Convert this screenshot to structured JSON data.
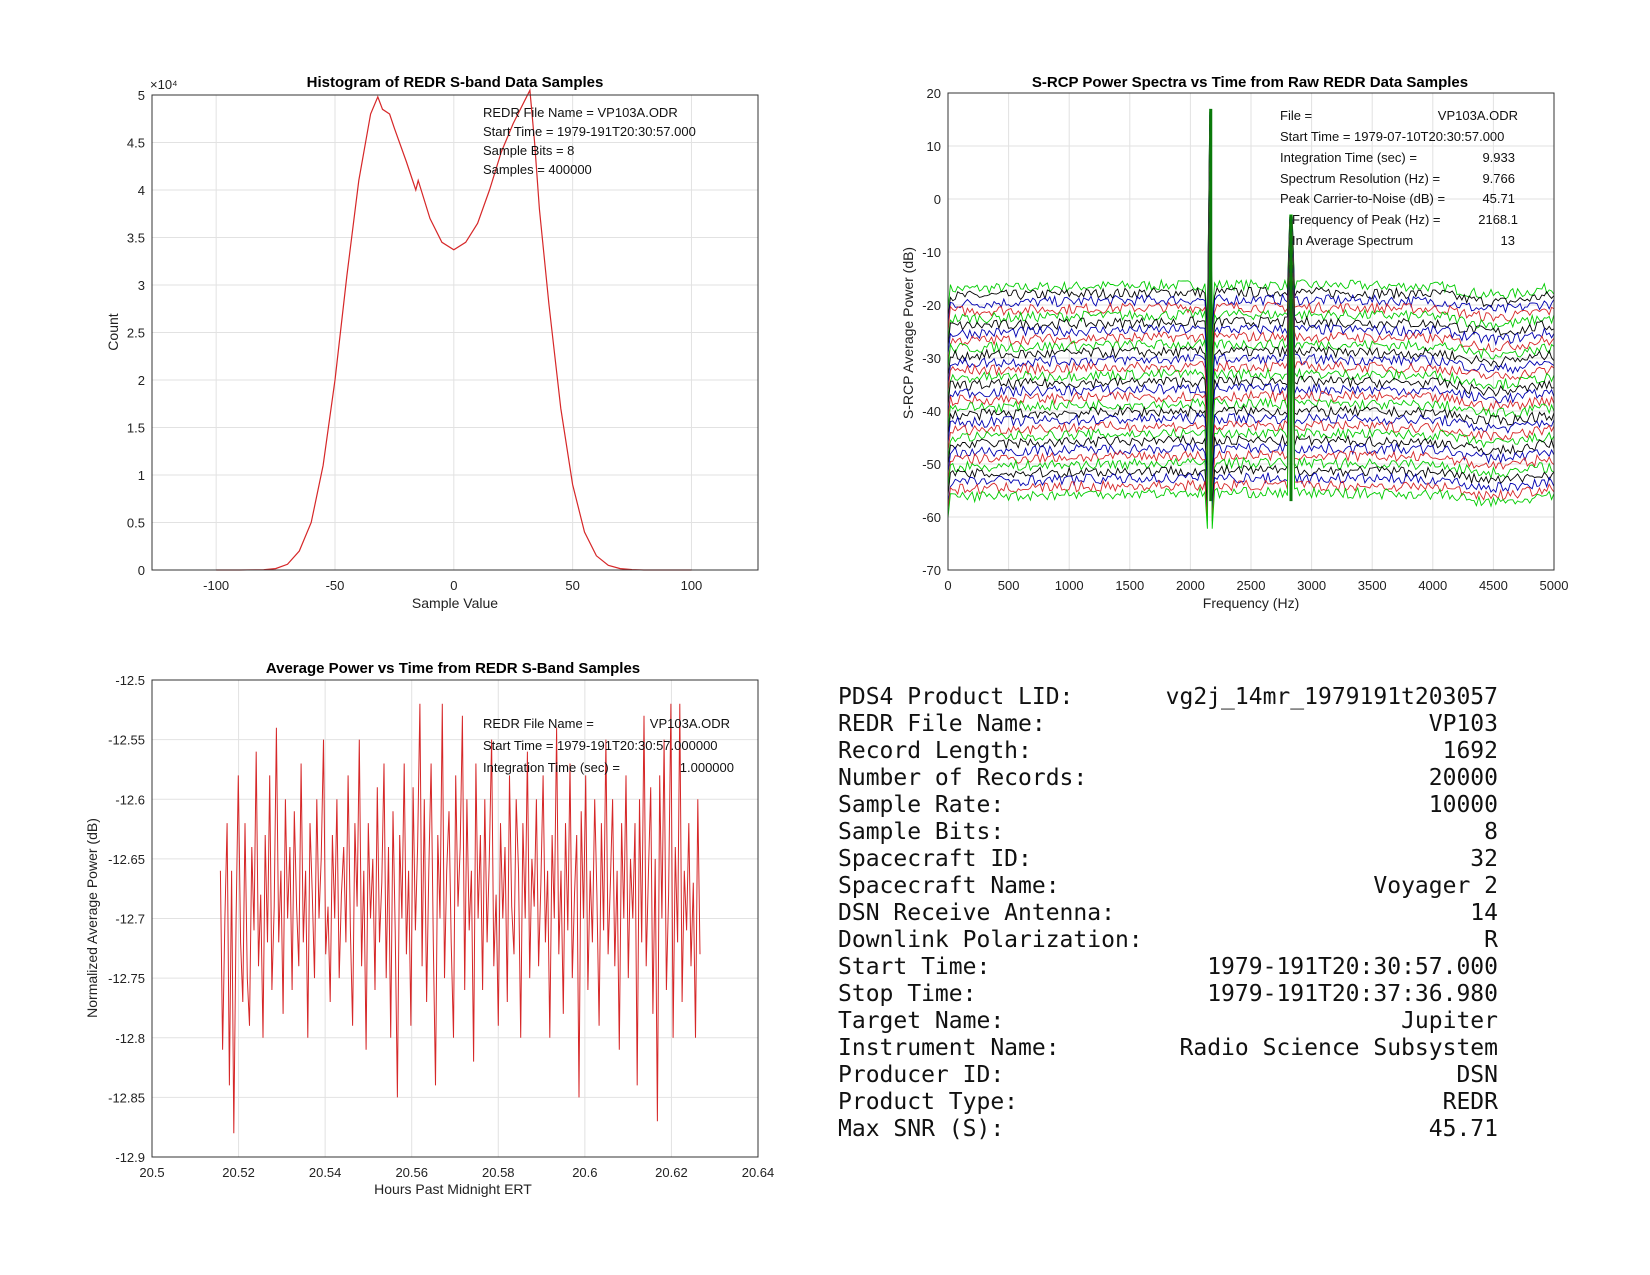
{
  "chart_data": [
    {
      "type": "line",
      "title": "Histogram of REDR S-band Data Samples",
      "xlabel": "Sample Value",
      "ylabel": "Count",
      "y_exponent": "×10⁴",
      "xlim": [
        -127,
        128
      ],
      "ylim": [
        0,
        50000
      ],
      "x_ticks": [
        "-100",
        "-50",
        "0",
        "50",
        "100"
      ],
      "y_ticks": [
        "0",
        "0.5",
        "1",
        "1.5",
        "2",
        "2.5",
        "3",
        "3.5",
        "4",
        "4.5",
        "5"
      ],
      "grid": true,
      "line_color": "#d62728",
      "annotations": [
        "REDR File Name = VP103A.ODR",
        "Start Time = 1979-191T20:30:57.000",
        "Sample Bits = 8",
        "Samples = 400000"
      ],
      "x": [
        -100,
        -90,
        -80,
        -75,
        -70,
        -65,
        -60,
        -55,
        -50,
        -45,
        -40,
        -35,
        -32,
        -30,
        -27,
        -25,
        -20,
        -16,
        -15,
        -10,
        -5,
        0,
        5,
        10,
        15,
        20,
        25,
        30,
        32,
        34,
        36,
        40,
        45,
        50,
        55,
        60,
        65,
        70,
        75,
        80,
        90,
        100
      ],
      "values": [
        0,
        0,
        30,
        150,
        600,
        2000,
        5000,
        11000,
        20000,
        31000,
        41000,
        48000,
        49800,
        48500,
        48000,
        46500,
        43000,
        40000,
        41000,
        37000,
        34500,
        33700,
        34500,
        36500,
        40000,
        44000,
        47000,
        49500,
        50500,
        45000,
        38000,
        28000,
        17000,
        9000,
        4000,
        1500,
        500,
        150,
        40,
        5,
        0,
        0
      ]
    },
    {
      "type": "line",
      "title": "S-RCP Power Spectra vs Time from Raw REDR Data Samples",
      "xlabel": "Frequency (Hz)",
      "ylabel": "S-RCP Average Power (dB)",
      "xlim": [
        0,
        5000
      ],
      "ylim": [
        -70,
        20
      ],
      "x_ticks": [
        "0",
        "500",
        "1000",
        "1500",
        "2000",
        "2500",
        "3000",
        "3500",
        "4000",
        "4500",
        "5000"
      ],
      "y_ticks": [
        "20",
        "10",
        "0",
        "-10",
        "-20",
        "-30",
        "-40",
        "-50",
        "-60",
        "-70"
      ],
      "grid": true,
      "n_spectra": 29,
      "top_level_db": -17,
      "step_db": -1.4,
      "colors": [
        "#00cc00",
        "#000000",
        "#0000b0",
        "#d62728"
      ],
      "peaks": [
        {
          "freq": 2168,
          "top_db": 17
        },
        {
          "freq": 2830,
          "top_db": -3
        }
      ],
      "annotations": [
        {
          "label": "File =",
          "value": "VP103A.ODR"
        },
        {
          "label": "Start Time = 1979-07-10T20:30:57.000",
          "value": ""
        },
        {
          "label": "Integration Time (sec) =",
          "value": "9.933"
        },
        {
          "label": "Spectrum Resolution (Hz) =",
          "value": "9.766"
        },
        {
          "label": "Peak Carrier-to-Noise (dB) =",
          "value": "45.71"
        },
        {
          "label": "Frequency of Peak (Hz) =",
          "value": "2168.1"
        },
        {
          "label": "In Average Spectrum",
          "value": "13"
        }
      ]
    },
    {
      "type": "line",
      "title": "Average Power vs Time from REDR S-Band Samples",
      "xlabel": "Hours Past Midnight ERT",
      "ylabel": "Normalized Average Power (dB)",
      "xlim": [
        20.5,
        20.64
      ],
      "ylim": [
        -12.9,
        -12.5
      ],
      "x_ticks": [
        "20.5",
        "20.52",
        "20.54",
        "20.56",
        "20.58",
        "20.6",
        "20.62",
        "20.64"
      ],
      "y_ticks": [
        "-12.5",
        "-12.55",
        "-12.6",
        "-12.65",
        "-12.7",
        "-12.75",
        "-12.8",
        "-12.85",
        "-12.9"
      ],
      "grid": true,
      "line_color": "#d62728",
      "x_start": 20.5158,
      "x_end": 20.6266,
      "annotations": [
        {
          "label": "REDR File Name =",
          "value": "VP103A.ODR"
        },
        {
          "label": "Start Time = 1979-191T20:30:57.000000",
          "value": ""
        },
        {
          "label": "Integration Time (sec) =",
          "value": "1.000000"
        }
      ],
      "values": [
        -12.66,
        -12.81,
        -12.7,
        -12.62,
        -12.84,
        -12.66,
        -12.88,
        -12.7,
        -12.58,
        -12.72,
        -12.77,
        -12.62,
        -12.75,
        -12.79,
        -12.64,
        -12.71,
        -12.56,
        -12.74,
        -12.68,
        -12.8,
        -12.63,
        -12.72,
        -12.58,
        -12.76,
        -12.69,
        -12.54,
        -12.72,
        -12.66,
        -12.78,
        -12.6,
        -12.7,
        -12.64,
        -12.76,
        -12.61,
        -12.69,
        -12.74,
        -12.57,
        -12.72,
        -12.66,
        -12.8,
        -12.62,
        -12.68,
        -12.75,
        -12.6,
        -12.7,
        -12.65,
        -12.55,
        -12.73,
        -12.69,
        -12.77,
        -12.63,
        -12.7,
        -12.6,
        -12.75,
        -12.68,
        -12.64,
        -12.72,
        -12.58,
        -12.71,
        -12.79,
        -12.62,
        -12.69,
        -12.55,
        -12.74,
        -12.66,
        -12.81,
        -12.62,
        -12.7,
        -12.65,
        -12.76,
        -12.59,
        -12.72,
        -12.67,
        -12.57,
        -12.75,
        -12.64,
        -12.8,
        -12.61,
        -12.71,
        -12.85,
        -12.63,
        -12.7,
        -12.57,
        -12.73,
        -12.66,
        -12.79,
        -12.59,
        -12.71,
        -12.64,
        -12.52,
        -12.74,
        -12.6,
        -12.77,
        -12.66,
        -12.57,
        -12.72,
        -12.84,
        -12.63,
        -12.7,
        -12.52,
        -12.75,
        -12.66,
        -12.61,
        -12.72,
        -12.8,
        -12.58,
        -12.69,
        -12.64,
        -12.53,
        -12.76,
        -12.6,
        -12.71,
        -12.66,
        -12.82,
        -12.57,
        -12.7,
        -12.63,
        -12.76,
        -12.6,
        -12.72,
        -12.65,
        -12.55,
        -12.74,
        -12.68,
        -12.79,
        -12.62,
        -12.7,
        -12.64,
        -12.77,
        -12.58,
        -12.69,
        -12.73,
        -12.6,
        -12.66,
        -12.8,
        -12.62,
        -12.7,
        -12.56,
        -12.75,
        -12.65,
        -12.69,
        -12.6,
        -12.74,
        -12.67,
        -12.58,
        -12.72,
        -12.66,
        -12.8,
        -12.63,
        -12.7,
        -12.54,
        -12.73,
        -12.66,
        -12.78,
        -12.62,
        -12.71,
        -12.57,
        -12.75,
        -12.68,
        -12.63,
        -12.85,
        -12.61,
        -12.7,
        -12.58,
        -12.76,
        -12.66,
        -12.72,
        -12.6,
        -12.68,
        -12.79,
        -12.62,
        -12.71,
        -12.55,
        -12.73,
        -12.67,
        -12.6,
        -12.74,
        -12.66,
        -12.81,
        -12.62,
        -12.7,
        -12.58,
        -12.75,
        -12.65,
        -12.7,
        -12.62,
        -12.84,
        -12.6,
        -12.72,
        -12.53,
        -12.74,
        -12.66,
        -12.59,
        -12.78,
        -12.65,
        -12.87,
        -12.58,
        -12.7,
        -12.55,
        -12.76,
        -12.68,
        -12.52,
        -12.8,
        -12.64,
        -12.72,
        -12.52,
        -12.77,
        -12.66,
        -12.71,
        -12.62,
        -12.74,
        -12.67,
        -12.8,
        -12.6,
        -12.73
      ]
    }
  ],
  "info_table": [
    {
      "label": "PDS4 Product LID:",
      "value": "vg2j_14mr_1979191t203057"
    },
    {
      "label": "REDR File Name:",
      "value": "VP103"
    },
    {
      "label": "Record Length:",
      "value": "1692"
    },
    {
      "label": "Number of Records:",
      "value": "20000"
    },
    {
      "label": "Sample Rate:",
      "value": "10000"
    },
    {
      "label": "Sample Bits:",
      "value": "8"
    },
    {
      "label": "Spacecraft ID:",
      "value": "32"
    },
    {
      "label": "Spacecraft Name:",
      "value": "Voyager 2"
    },
    {
      "label": "DSN Receive Antenna:",
      "value": "14"
    },
    {
      "label": "Downlink Polarization:",
      "value": "R"
    },
    {
      "label": "Start Time:",
      "value": "1979-191T20:30:57.000"
    },
    {
      "label": "Stop Time:",
      "value": "1979-191T20:37:36.980"
    },
    {
      "label": "Target Name:",
      "value": "Jupiter"
    },
    {
      "label": "Instrument Name:",
      "value": "Radio Science Subsystem"
    },
    {
      "label": "Producer ID:",
      "value": "DSN"
    },
    {
      "label": "Product Type:",
      "value": "REDR"
    },
    {
      "label": "Max SNR (S):",
      "value": "45.71"
    }
  ]
}
